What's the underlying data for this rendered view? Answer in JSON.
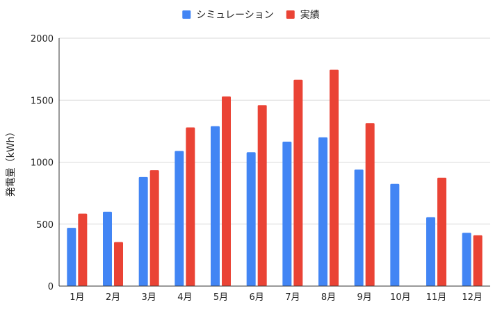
{
  "chart_data": {
    "type": "bar",
    "ylabel": "発電量（kWh）",
    "ylim": [
      0,
      2000
    ],
    "yticks": [
      0,
      500,
      1000,
      1500,
      2000
    ],
    "grid": true,
    "legend_position": "top",
    "categories": [
      "1月",
      "2月",
      "3月",
      "4月",
      "5月",
      "6月",
      "7月",
      "8月",
      "9月",
      "10月",
      "11月",
      "12月"
    ],
    "series": [
      {
        "name": "シミュレーション",
        "color": "#4285f4",
        "values": [
          470,
          600,
          880,
          1090,
          1290,
          1080,
          1165,
          1200,
          940,
          825,
          555,
          430
        ]
      },
      {
        "name": "実績",
        "color": "#ea4335",
        "values": [
          585,
          355,
          935,
          1280,
          1530,
          1460,
          1665,
          1745,
          1315,
          null,
          875,
          410
        ]
      }
    ]
  }
}
